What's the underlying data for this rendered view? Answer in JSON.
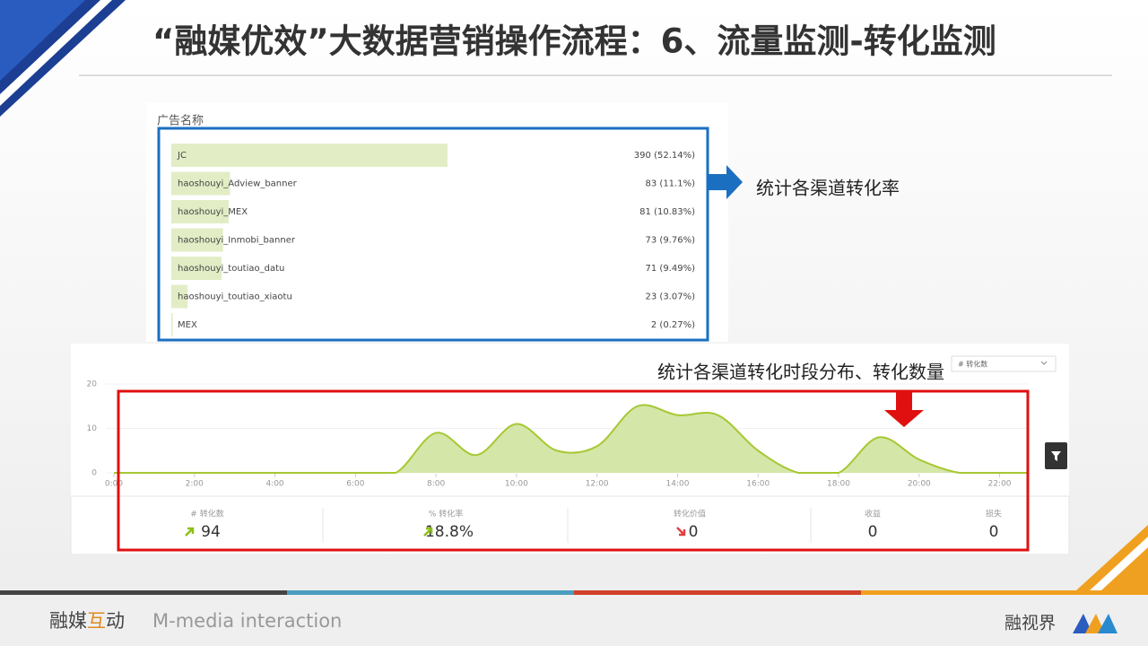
{
  "header": {
    "title": "“融媒优效”大数据营销操作流程：6、流量监测-转化监测"
  },
  "ad_panel": {
    "label": "广告名称",
    "bar_color": "#e2edc6",
    "rows": [
      {
        "name": "JC",
        "value": 390,
        "label": "390 (52.14%)"
      },
      {
        "name": "haoshouyi_Adview_banner",
        "value": 83,
        "label": "83 (11.1%)"
      },
      {
        "name": "haoshouyi_MEX",
        "value": 81,
        "label": "81 (10.83%)"
      },
      {
        "name": "haoshouyi_Inmobi_banner",
        "value": 73,
        "label": "73 (9.76%)"
      },
      {
        "name": "haoshouyi_toutiao_datu",
        "value": 71,
        "label": "71 (9.49%)"
      },
      {
        "name": "haoshouyi_toutiao_xiaotu",
        "value": 23,
        "label": "23 (3.07%)"
      },
      {
        "name": "MEX",
        "value": 2,
        "label": "2 (0.27%)"
      }
    ]
  },
  "annotations": {
    "rate": "统计各渠道转化率",
    "time": "统计各渠道转化时段分布、转化数量"
  },
  "chart_data": {
    "type": "area",
    "color": "#a6c832",
    "fill": "#d5e6a9",
    "x": [
      0,
      1,
      2,
      3,
      4,
      5,
      6,
      7,
      8,
      9,
      10,
      11,
      12,
      13,
      14,
      15,
      16,
      17,
      18,
      19,
      20,
      21,
      22
    ],
    "values": [
      0,
      0,
      0,
      0,
      0,
      0,
      0,
      0,
      9,
      4,
      11,
      5,
      6,
      15,
      13,
      13,
      5,
      0,
      0,
      8,
      3,
      0,
      0
    ],
    "xlim": [
      0,
      22.7
    ],
    "ylim": [
      0,
      20
    ],
    "xticks": [
      {
        "value": 0,
        "label": "0:00"
      },
      {
        "value": 2,
        "label": "2:00"
      },
      {
        "value": 4,
        "label": "4:00"
      },
      {
        "value": 6,
        "label": "6:00"
      },
      {
        "value": 8,
        "label": "8:00"
      },
      {
        "value": 10,
        "label": "10:00"
      },
      {
        "value": 12,
        "label": "12:00"
      },
      {
        "value": 14,
        "label": "14:00"
      },
      {
        "value": 16,
        "label": "16:00"
      },
      {
        "value": 18,
        "label": "18:00"
      },
      {
        "value": 20,
        "label": "20:00"
      },
      {
        "value": 22,
        "label": "22:00"
      }
    ],
    "yticks": [
      0,
      10,
      20
    ],
    "grid": true,
    "dropdown": "# 转化数"
  },
  "stats": [
    {
      "label": "# 转化数",
      "value": 94,
      "trend": "up"
    },
    {
      "label": "% 转化率",
      "value": "18.8%",
      "trend": "up"
    },
    {
      "label": "转化价值",
      "value": 0,
      "trend": "down"
    },
    {
      "label": "收益",
      "value": 0,
      "trend": null
    },
    {
      "label": "损失",
      "value": 0,
      "trend": null
    }
  ],
  "footer": {
    "brand_a": "融媒",
    "brand_b": "互",
    "brand_c": "动",
    "tagline": "M-media interaction",
    "right": "融视界"
  }
}
